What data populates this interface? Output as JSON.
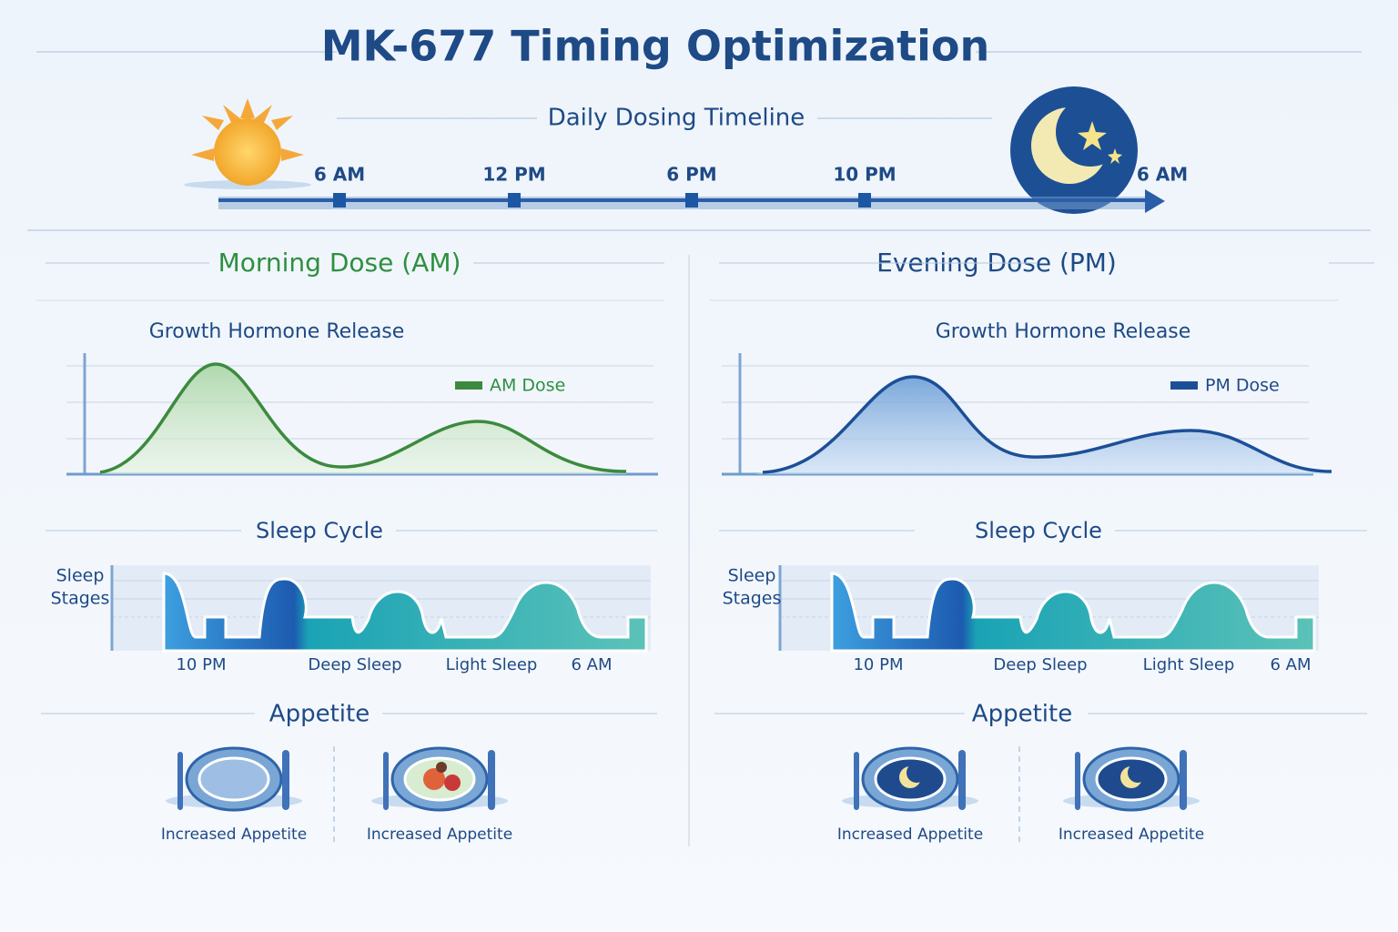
{
  "title": "MK-677 Timing Optimization",
  "timeline": {
    "title": "Daily Dosing Timeline",
    "labels": [
      "6 AM",
      "12 PM",
      "6 PM",
      "10 PM",
      "6 AM"
    ]
  },
  "panels": [
    {
      "title": "Morning Dose (AM)",
      "gh_title": "Growth Hormone Release",
      "legend": "AM Dose",
      "sleep_title": "Sleep Cycle",
      "sleep_axis": [
        "Sleep",
        "Stages"
      ],
      "sleep_labels": [
        "10 PM",
        "Deep Sleep",
        "Light Sleep",
        "6 AM"
      ],
      "appetite_title": "Appetite",
      "appetite_items": [
        "Increased Appetite",
        "Increased Appetite"
      ]
    },
    {
      "title": "Evening Dose (PM)",
      "gh_title": "Growth Hormone Release",
      "legend": "PM Dose",
      "sleep_title": "Sleep Cycle",
      "sleep_axis": [
        "Sleep",
        "Stages"
      ],
      "sleep_labels": [
        "10 PM",
        "Deep Sleep",
        "Light Sleep",
        "6 AM"
      ],
      "appetite_title": "Appetite",
      "appetite_items": [
        "Increased Appetite",
        "Increased Appetite"
      ]
    }
  ]
}
